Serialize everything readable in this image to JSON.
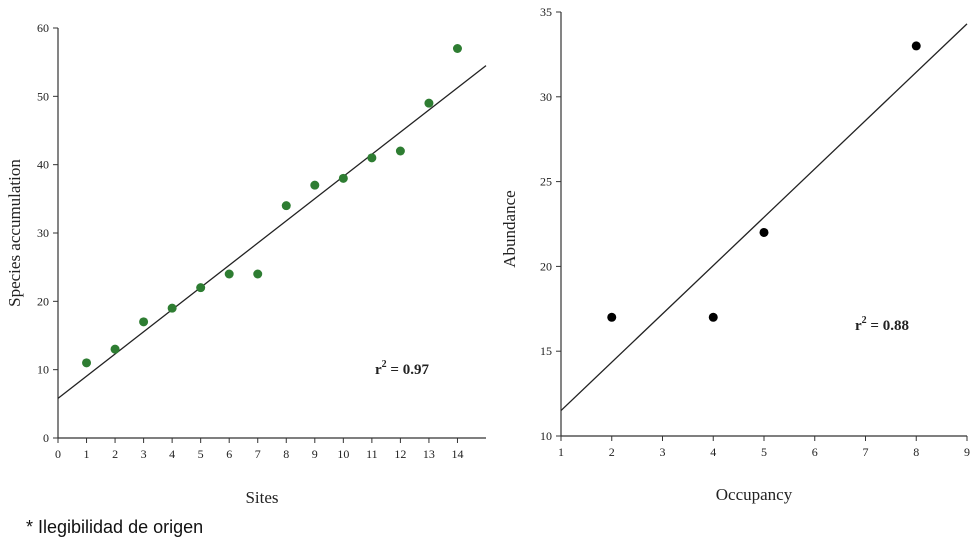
{
  "chart_data": [
    {
      "type": "scatter",
      "xlabel": "Sites",
      "ylabel": "Species accumulation",
      "xlim": [
        0,
        15
      ],
      "ylim": [
        0,
        60
      ],
      "xticks": [
        0,
        1,
        2,
        3,
        4,
        5,
        6,
        7,
        8,
        9,
        10,
        11,
        12,
        13,
        14
      ],
      "yticks": [
        0,
        10,
        20,
        30,
        40,
        50,
        60
      ],
      "point_color": "#2e7d32",
      "series": [
        {
          "x": [
            1,
            2,
            3,
            4,
            5,
            6,
            7,
            8,
            9,
            10,
            11,
            12,
            13,
            14
          ],
          "y": [
            11,
            13,
            17,
            19,
            22,
            24,
            24,
            34,
            37,
            38,
            41,
            42,
            49,
            57
          ]
        }
      ],
      "trendline": {
        "x": [
          0,
          15
        ],
        "y": [
          5.8,
          54.5
        ]
      },
      "annotation": {
        "base": "r",
        "sup": "2",
        "text": " =  0.97"
      },
      "grid": false
    },
    {
      "type": "scatter",
      "xlabel": "Occupancy",
      "ylabel": "Abundance",
      "xlim": [
        1,
        9
      ],
      "ylim": [
        10,
        35
      ],
      "xticks": [
        1,
        2,
        3,
        4,
        5,
        6,
        7,
        8,
        9
      ],
      "yticks": [
        10,
        15,
        20,
        25,
        30,
        35
      ],
      "point_color": "#000000",
      "series": [
        {
          "x": [
            2,
            4,
            5,
            8
          ],
          "y": [
            17,
            17,
            22,
            33
          ]
        }
      ],
      "trendline": {
        "x": [
          1,
          9
        ],
        "y": [
          11.5,
          34.3
        ]
      },
      "annotation": {
        "base": "r",
        "sup": "2",
        "text": " = 0.88"
      },
      "grid": false
    }
  ],
  "footnote": "* Ilegibilidad de origen"
}
